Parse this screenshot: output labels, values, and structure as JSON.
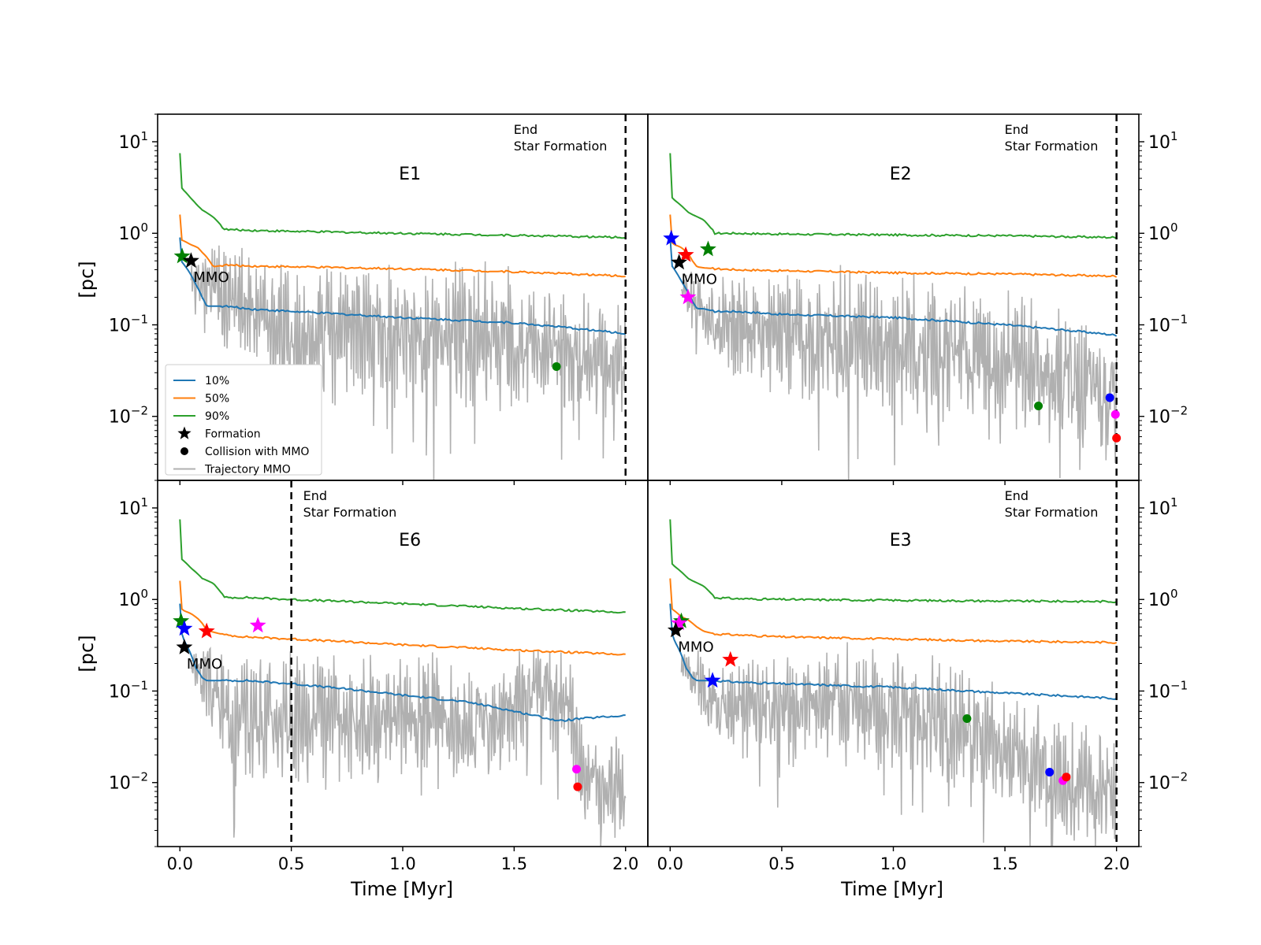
{
  "figure": {
    "xlabel": "Time [Myr]",
    "ylabel": "[pc]",
    "mmo_label": "MMO",
    "end_label_line1": "End",
    "end_label_line2": "Star Formation"
  },
  "colors": {
    "p10": "#1f77b4",
    "p50": "#ff7f0e",
    "p90": "#2ca02c",
    "trajectory": "#b0b0b0",
    "black": "#000000",
    "blue": "#0000ff",
    "red": "#ff0000",
    "green": "#008000",
    "magenta": "#ff00ff"
  },
  "legend": [
    {
      "label": "10%",
      "kind": "line",
      "color": "#1f77b4"
    },
    {
      "label": "50%",
      "kind": "line",
      "color": "#ff7f0e"
    },
    {
      "label": "90%",
      "kind": "line",
      "color": "#2ca02c"
    },
    {
      "label": "Formation",
      "kind": "star",
      "color": "#000000"
    },
    {
      "label": "Collision with MMO",
      "kind": "dot",
      "color": "#000000"
    },
    {
      "label": "Trajectory MMO",
      "kind": "line",
      "color": "#b0b0b0"
    }
  ],
  "chart_data": [
    {
      "type": "line",
      "title": "E1",
      "position": "top-left",
      "xlabel": "",
      "ylabel": "[pc]",
      "yscale": "log",
      "xlim": [
        -0.1,
        2.1
      ],
      "ylim": [
        0.002,
        20
      ],
      "xticks": [
        "0.0",
        "0.5",
        "1.0",
        "1.5",
        "2.0"
      ],
      "yticks": [
        "10^1",
        "10^0",
        "10^-1",
        "10^-2"
      ],
      "end_star_formation": 2.0,
      "series": [
        {
          "name": "90%",
          "x": [
            0.0,
            0.005,
            0.02,
            0.05,
            0.08,
            0.1,
            0.15,
            0.2,
            0.3,
            0.5,
            1.0,
            1.5,
            2.0
          ],
          "y": [
            7.5,
            3.2,
            2.9,
            2.4,
            2.0,
            1.8,
            1.5,
            1.1,
            1.08,
            1.05,
            1.0,
            0.95,
            0.9
          ]
        },
        {
          "name": "50%",
          "x": [
            0.0,
            0.005,
            0.02,
            0.05,
            0.08,
            0.1,
            0.12,
            0.15,
            0.2,
            0.3,
            0.5,
            1.0,
            1.5,
            2.0
          ],
          "y": [
            1.6,
            0.85,
            0.82,
            0.75,
            0.7,
            0.62,
            0.55,
            0.43,
            0.45,
            0.44,
            0.43,
            0.41,
            0.38,
            0.34
          ]
        },
        {
          "name": "10%",
          "x": [
            0.0,
            0.005,
            0.02,
            0.05,
            0.07,
            0.1,
            0.12,
            0.15,
            0.2,
            0.3,
            0.5,
            1.0,
            1.5,
            2.0
          ],
          "y": [
            0.9,
            0.5,
            0.45,
            0.35,
            0.28,
            0.2,
            0.16,
            0.16,
            0.16,
            0.15,
            0.14,
            0.12,
            0.105,
            0.08
          ]
        }
      ],
      "trajectory": {
        "name": "Trajectory MMO",
        "x": [
          0.05,
          0.2,
          0.5,
          0.8,
          1.1,
          1.4,
          1.7,
          2.0
        ],
        "center": [
          0.3,
          0.2,
          0.07,
          0.08,
          0.07,
          0.07,
          0.05,
          0.04
        ],
        "spread": [
          0.15,
          0.55,
          0.65,
          0.7,
          0.7,
          0.75,
          0.6,
          0.6
        ],
        "seed": 1
      },
      "formation_stars": [
        {
          "color": "green",
          "x": 0.01,
          "y": 0.56
        },
        {
          "color": "black",
          "x": 0.05,
          "y": 0.5,
          "label": "MMO"
        }
      ],
      "collision_dots": [
        {
          "color": "green",
          "x": 1.69,
          "y": 0.035
        }
      ],
      "legend": "lower-left"
    },
    {
      "type": "line",
      "title": "E2",
      "position": "top-right",
      "xlabel": "",
      "ylabel": "",
      "yscale": "log",
      "xlim": [
        -0.1,
        2.1
      ],
      "ylim": [
        0.002,
        20
      ],
      "xticks": [
        "0.0",
        "0.5",
        "1.0",
        "1.5",
        "2.0"
      ],
      "yticks": [
        "10^1",
        "10^0",
        "10^-1",
        "10^-2"
      ],
      "end_star_formation": 2.0,
      "series": [
        {
          "name": "90%",
          "x": [
            0.0,
            0.005,
            0.02,
            0.05,
            0.08,
            0.1,
            0.15,
            0.2,
            0.3,
            0.5,
            1.0,
            1.5,
            2.0
          ],
          "y": [
            7.5,
            2.5,
            2.3,
            2.0,
            1.7,
            1.6,
            1.4,
            1.0,
            1.0,
            0.98,
            0.96,
            0.94,
            0.9
          ]
        },
        {
          "name": "50%",
          "x": [
            0.0,
            0.005,
            0.02,
            0.05,
            0.08,
            0.1,
            0.12,
            0.15,
            0.2,
            0.3,
            0.5,
            1.0,
            1.5,
            2.0
          ],
          "y": [
            1.6,
            0.8,
            0.75,
            0.7,
            0.6,
            0.5,
            0.43,
            0.42,
            0.41,
            0.4,
            0.39,
            0.37,
            0.36,
            0.34
          ]
        },
        {
          "name": "10%",
          "x": [
            0.0,
            0.005,
            0.02,
            0.05,
            0.07,
            0.1,
            0.12,
            0.15,
            0.2,
            0.3,
            0.5,
            1.0,
            1.5,
            2.0
          ],
          "y": [
            0.9,
            0.45,
            0.4,
            0.3,
            0.25,
            0.18,
            0.15,
            0.15,
            0.14,
            0.14,
            0.13,
            0.12,
            0.1,
            0.077
          ]
        }
      ],
      "trajectory": {
        "name": "Trajectory MMO",
        "x": [
          0.05,
          0.2,
          0.5,
          0.8,
          1.1,
          1.4,
          1.7,
          2.0
        ],
        "center": [
          0.25,
          0.1,
          0.08,
          0.07,
          0.06,
          0.05,
          0.03,
          0.015
        ],
        "spread": [
          0.15,
          0.5,
          0.6,
          0.7,
          0.7,
          0.7,
          0.7,
          0.65
        ],
        "seed": 2
      },
      "formation_stars": [
        {
          "color": "blue",
          "x": 0.005,
          "y": 0.88
        },
        {
          "color": "red",
          "x": 0.07,
          "y": 0.58
        },
        {
          "color": "green",
          "x": 0.17,
          "y": 0.67
        },
        {
          "color": "black",
          "x": 0.04,
          "y": 0.48,
          "label": "MMO"
        },
        {
          "color": "magenta",
          "x": 0.08,
          "y": 0.2
        }
      ],
      "collision_dots": [
        {
          "color": "green",
          "x": 1.65,
          "y": 0.013
        },
        {
          "color": "blue",
          "x": 1.97,
          "y": 0.016
        },
        {
          "color": "magenta",
          "x": 1.995,
          "y": 0.0105
        },
        {
          "color": "red",
          "x": 2.0,
          "y": 0.0058
        }
      ]
    },
    {
      "type": "line",
      "title": "E6",
      "position": "bottom-left",
      "xlabel": "Time [Myr]",
      "ylabel": "[pc]",
      "yscale": "log",
      "xlim": [
        -0.1,
        2.1
      ],
      "ylim": [
        0.002,
        20
      ],
      "xticks": [
        "0.0",
        "0.5",
        "1.0",
        "1.5",
        "2.0"
      ],
      "yticks": [
        "10^1",
        "10^0",
        "10^-1",
        "10^-2"
      ],
      "end_star_formation": 0.5,
      "series": [
        {
          "name": "90%",
          "x": [
            0.0,
            0.005,
            0.02,
            0.05,
            0.08,
            0.1,
            0.15,
            0.2,
            0.3,
            0.5,
            1.0,
            1.5,
            2.0
          ],
          "y": [
            7.5,
            2.8,
            2.6,
            2.2,
            1.9,
            1.7,
            1.5,
            1.05,
            1.05,
            1.0,
            0.9,
            0.8,
            0.72
          ]
        },
        {
          "name": "50%",
          "x": [
            0.0,
            0.005,
            0.02,
            0.05,
            0.08,
            0.1,
            0.12,
            0.15,
            0.2,
            0.3,
            0.5,
            1.0,
            1.5,
            2.0
          ],
          "y": [
            1.6,
            0.8,
            0.75,
            0.7,
            0.62,
            0.55,
            0.46,
            0.44,
            0.41,
            0.39,
            0.37,
            0.32,
            0.28,
            0.25
          ]
        },
        {
          "name": "10%",
          "x": [
            0.0,
            0.005,
            0.02,
            0.05,
            0.07,
            0.1,
            0.12,
            0.15,
            0.2,
            0.3,
            0.5,
            1.0,
            1.3,
            1.5,
            1.7,
            1.8,
            2.0
          ],
          "y": [
            0.9,
            0.45,
            0.35,
            0.25,
            0.18,
            0.14,
            0.13,
            0.13,
            0.13,
            0.13,
            0.12,
            0.09,
            0.075,
            0.06,
            0.047,
            0.05,
            0.054
          ]
        }
      ],
      "trajectory": {
        "name": "Trajectory MMO",
        "x": [
          0.05,
          0.2,
          0.5,
          0.8,
          1.1,
          1.4,
          1.6,
          1.75,
          1.8,
          2.0
        ],
        "center": [
          0.2,
          0.06,
          0.05,
          0.05,
          0.06,
          0.04,
          0.1,
          0.06,
          0.012,
          0.007
        ],
        "spread": [
          0.15,
          0.6,
          0.65,
          0.6,
          0.6,
          0.6,
          0.5,
          0.5,
          0.5,
          0.55
        ],
        "seed": 3
      },
      "formation_stars": [
        {
          "color": "green",
          "x": 0.005,
          "y": 0.58
        },
        {
          "color": "blue",
          "x": 0.02,
          "y": 0.48
        },
        {
          "color": "red",
          "x": 0.12,
          "y": 0.45
        },
        {
          "color": "magenta",
          "x": 0.35,
          "y": 0.52
        },
        {
          "color": "black",
          "x": 0.02,
          "y": 0.3,
          "label": "MMO"
        }
      ],
      "collision_dots": [
        {
          "color": "magenta",
          "x": 1.78,
          "y": 0.014
        },
        {
          "color": "red",
          "x": 1.785,
          "y": 0.009
        }
      ]
    },
    {
      "type": "line",
      "title": "E3",
      "position": "bottom-right",
      "xlabel": "Time [Myr]",
      "ylabel": "",
      "yscale": "log",
      "xlim": [
        -0.1,
        2.1
      ],
      "ylim": [
        0.002,
        20
      ],
      "xticks": [
        "0.0",
        "0.5",
        "1.0",
        "1.5",
        "2.0"
      ],
      "yticks": [
        "10^1",
        "10^0",
        "10^-1",
        "10^-2"
      ],
      "end_star_formation": 2.0,
      "series": [
        {
          "name": "90%",
          "x": [
            0.0,
            0.005,
            0.02,
            0.05,
            0.08,
            0.1,
            0.15,
            0.2,
            0.3,
            0.5,
            1.0,
            1.5,
            2.0
          ],
          "y": [
            7.5,
            2.5,
            2.3,
            2.0,
            1.7,
            1.6,
            1.4,
            1.05,
            1.02,
            1.0,
            0.98,
            0.96,
            0.95
          ]
        },
        {
          "name": "50%",
          "x": [
            0.0,
            0.005,
            0.02,
            0.05,
            0.08,
            0.1,
            0.12,
            0.15,
            0.2,
            0.3,
            0.5,
            1.0,
            1.5,
            2.0
          ],
          "y": [
            1.7,
            0.8,
            0.75,
            0.65,
            0.6,
            0.55,
            0.5,
            0.45,
            0.42,
            0.41,
            0.39,
            0.37,
            0.35,
            0.34
          ]
        },
        {
          "name": "10%",
          "x": [
            0.0,
            0.005,
            0.02,
            0.05,
            0.07,
            0.1,
            0.12,
            0.15,
            0.2,
            0.3,
            0.5,
            1.0,
            1.5,
            2.0
          ],
          "y": [
            0.9,
            0.45,
            0.35,
            0.25,
            0.18,
            0.14,
            0.13,
            0.13,
            0.13,
            0.125,
            0.12,
            0.11,
            0.095,
            0.083
          ]
        }
      ],
      "trajectory": {
        "name": "Trajectory MMO",
        "x": [
          0.05,
          0.2,
          0.5,
          0.8,
          1.1,
          1.4,
          1.7,
          2.0
        ],
        "center": [
          0.2,
          0.07,
          0.06,
          0.07,
          0.06,
          0.03,
          0.012,
          0.008
        ],
        "spread": [
          0.15,
          0.5,
          0.55,
          0.6,
          0.6,
          0.6,
          0.6,
          0.6
        ],
        "seed": 4
      },
      "formation_stars": [
        {
          "color": "green",
          "x": 0.05,
          "y": 0.58
        },
        {
          "color": "magenta",
          "x": 0.04,
          "y": 0.55
        },
        {
          "color": "black",
          "x": 0.025,
          "y": 0.46,
          "label": "MMO"
        },
        {
          "color": "red",
          "x": 0.27,
          "y": 0.22
        },
        {
          "color": "blue",
          "x": 0.19,
          "y": 0.13
        }
      ],
      "collision_dots": [
        {
          "color": "green",
          "x": 1.33,
          "y": 0.05
        },
        {
          "color": "blue",
          "x": 1.7,
          "y": 0.013
        },
        {
          "color": "magenta",
          "x": 1.76,
          "y": 0.0105
        },
        {
          "color": "red",
          "x": 1.775,
          "y": 0.0115
        }
      ]
    }
  ]
}
